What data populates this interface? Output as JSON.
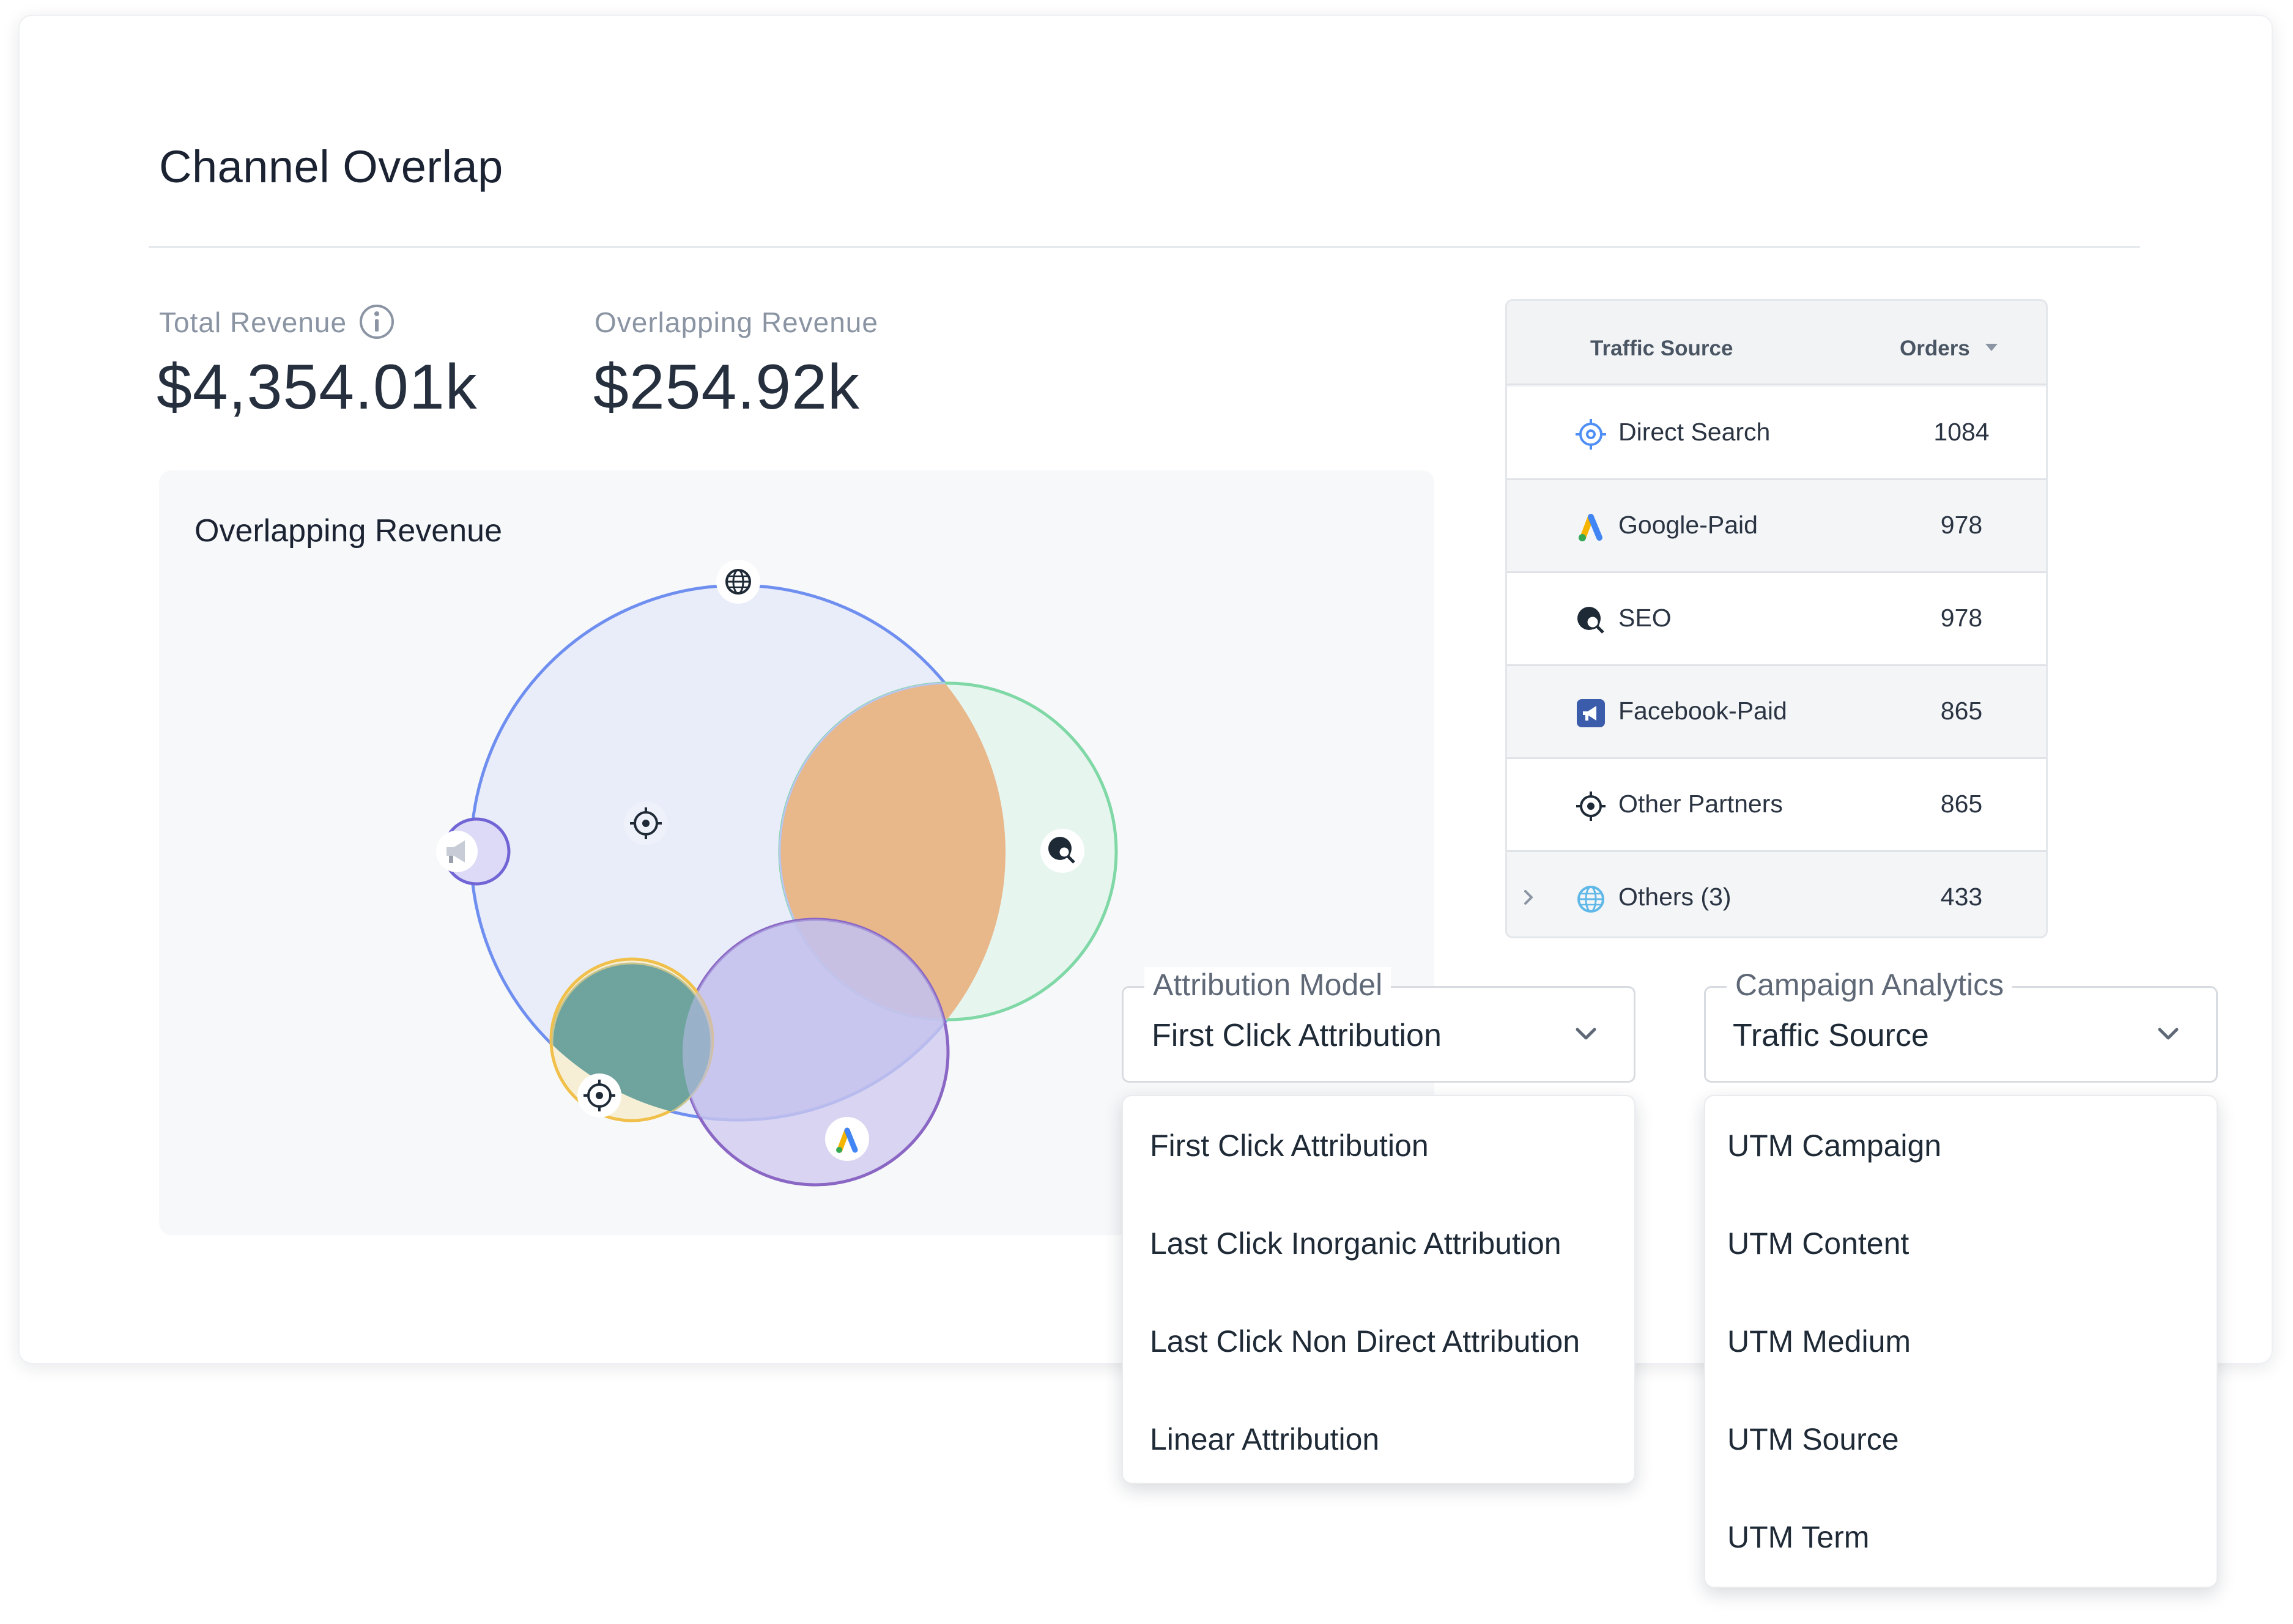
{
  "card": {
    "title": "Channel Overlap"
  },
  "kpis": {
    "total_revenue": {
      "label": "Total Revenue",
      "value": "$4,354.01k"
    },
    "overlapping_revenue": {
      "label": "Overlapping Revenue",
      "value": "$254.92k"
    }
  },
  "venn": {
    "title": "Overlapping Revenue",
    "channels": [
      {
        "name": "Direct Search",
        "icon": "globe-icon",
        "color": "#6f8ff0"
      },
      {
        "name": "SEO",
        "icon": "seo-search-icon",
        "color": "#7fd8a6"
      },
      {
        "name": "Google-Paid",
        "icon": "google-ads-icon",
        "color": "#8a67c4"
      },
      {
        "name": "Other Partners",
        "icon": "target-icon",
        "color": "#f0c04a"
      },
      {
        "name": "Facebook-Paid",
        "icon": "megaphone-icon",
        "color": "#7165d6"
      }
    ],
    "overlap_colors": {
      "orange": "#e8b78a",
      "teal": "#6fa49e",
      "lavender": "#d0d0f0"
    }
  },
  "table": {
    "headers": {
      "source": "Traffic Source",
      "orders": "Orders"
    },
    "rows": [
      {
        "name": "Direct Search",
        "orders": "1084",
        "icon": "crosshair-icon"
      },
      {
        "name": "Google-Paid",
        "orders": "978",
        "icon": "google-ads-icon"
      },
      {
        "name": "SEO",
        "orders": "978",
        "icon": "seo-search-icon"
      },
      {
        "name": "Facebook-Paid",
        "orders": "865",
        "icon": "facebook-ads-icon"
      },
      {
        "name": "Other Partners",
        "orders": "865",
        "icon": "target-icon"
      },
      {
        "name": "Others (3)",
        "orders": "433",
        "icon": "globe-icon"
      }
    ]
  },
  "attribution": {
    "label": "Attribution Model",
    "selected": "First Click Attribution",
    "options": [
      "First Click Attribution",
      "Last Click Inorganic Attribution",
      "Last Click Non Direct Attribution",
      "Linear Attribution"
    ]
  },
  "campaign": {
    "label": "Campaign Analytics",
    "selected": "Traffic Source",
    "options": [
      "UTM Campaign",
      "UTM Content",
      "UTM Medium",
      "UTM Source",
      "UTM Term"
    ]
  }
}
